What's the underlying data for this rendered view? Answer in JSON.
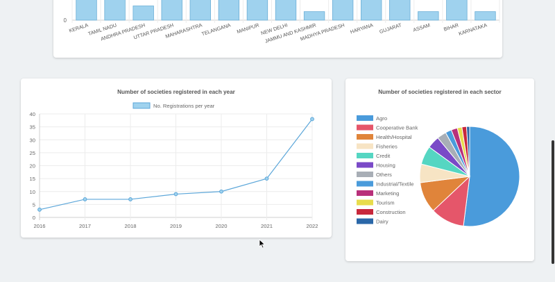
{
  "state_chart": {
    "zero_tick": "0",
    "states": [
      "KERALA",
      "TAMIL NADU",
      "ANDHRA PRADESH",
      "UTTAR PRADESH",
      "MAHARASHTRA",
      "TELANGANA",
      "MANIPUR",
      "NEW DELHI",
      "JAMMU AND KASHMIR",
      "MADHYA PRADESH",
      "HARYANA",
      "GUJARAT",
      "ASSAM",
      "BIHAR",
      "KARNATAKA"
    ],
    "bar_color": "#9fd2ee",
    "bar_border": "#6aaed6"
  },
  "year_chart": {
    "title": "Number of societies registered in each year",
    "legend_label": "No. Registrations per year",
    "y_ticks": [
      "0",
      "5",
      "10",
      "15",
      "20",
      "25",
      "30",
      "35",
      "40"
    ],
    "line_color": "#5ba6d9",
    "fill_color": "#9fd2ee"
  },
  "sector_chart": {
    "title": "Number of societies registered in each sector"
  },
  "chart_data": [
    {
      "type": "bar",
      "categories": [
        "KERALA",
        "TAMIL NADU",
        "ANDHRA PRADESH",
        "UTTAR PRADESH",
        "MAHARASHTRA",
        "TELANGANA",
        "MANIPUR",
        "NEW DELHI",
        "JAMMU AND KASHMIR",
        "MADHYA PRADESH",
        "HARYANA",
        "GUJARAT",
        "ASSAM",
        "BIHAR",
        "KARNATAKA"
      ],
      "values": [
        10,
        10,
        5,
        10,
        10,
        10,
        8,
        10,
        3,
        8,
        10,
        8,
        3,
        8,
        3
      ],
      "ylim": [
        0,
        10
      ]
    },
    {
      "type": "line",
      "title": "Number of societies registered in each year",
      "x": [
        "2016",
        "2017",
        "2018",
        "2019",
        "2020",
        "2021",
        "2022"
      ],
      "series": [
        {
          "name": "No. Registrations per year",
          "values": [
            3,
            7,
            7,
            9,
            10,
            15,
            38
          ]
        }
      ],
      "ylim": [
        0,
        40
      ],
      "grid": true,
      "legend": "top"
    },
    {
      "type": "pie",
      "title": "Number of societies registered in each sector",
      "labels": [
        "Agro",
        "Cooperative Bank",
        "Health/Hospital",
        "Fisheries",
        "Credit",
        "Housing",
        "Others",
        "Industrial/Textile",
        "Marketing",
        "Tourism",
        "Construction",
        "Dairy"
      ],
      "values": [
        52,
        11,
        10,
        6,
        6,
        4,
        3,
        2,
        2,
        1.5,
        1.5,
        1
      ],
      "colors": [
        "#4a9bdb",
        "#e5566a",
        "#e0843a",
        "#f7e4c4",
        "#55d6c2",
        "#7a4ac7",
        "#a8aeb6",
        "#4a9bdb",
        "#b8307a",
        "#e8dc4c",
        "#c8283c",
        "#2a67a8"
      ],
      "legend": "left"
    }
  ]
}
